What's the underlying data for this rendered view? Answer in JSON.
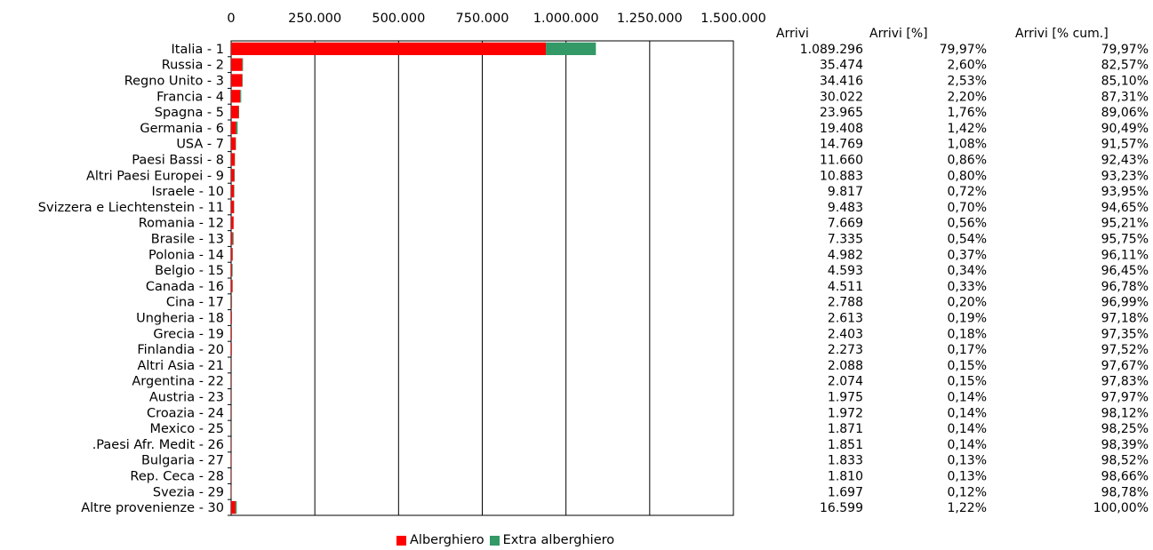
{
  "chart_data": {
    "type": "bar",
    "orientation": "horizontal",
    "stacked": true,
    "xlim": [
      0,
      1500000
    ],
    "x_ticks": [
      "0",
      "250.000",
      "500.000",
      "750.000",
      "1.000.000",
      "1.250.000",
      "1.500.000"
    ],
    "x_tick_values": [
      0,
      250000,
      500000,
      750000,
      1000000,
      1250000,
      1500000
    ],
    "grid": "vertical",
    "legend_position": "bottom",
    "categories": [
      "Italia - 1",
      "Russia - 2",
      "Regno Unito - 3",
      "Francia - 4",
      "Spagna - 5",
      "Germania - 6",
      "USA - 7",
      "Paesi Bassi - 8",
      "Altri Paesi Europei - 9",
      "Israele - 10",
      "Svizzera e Liechtenstein - 11",
      "Romania - 12",
      "Brasile - 13",
      "Polonia - 14",
      "Belgio - 15",
      "Canada - 16",
      "Cina - 17",
      "Ungheria - 18",
      "Grecia - 19",
      "Finlandia - 20",
      "Altri Asia - 21",
      "Argentina - 22",
      "Austria - 23",
      "Croazia - 24",
      "Mexico - 25",
      ".Paesi Afr. Medit - 26",
      "Bulgaria - 27",
      "Rep. Ceca - 28",
      "Svezia - 29",
      "Altre provenienze - 30"
    ],
    "series": [
      {
        "name": "Alberghiero",
        "color": "#ff0000",
        "values": [
          940000,
          33500,
          33000,
          27000,
          22500,
          14500,
          13500,
          11000,
          9500,
          8500,
          8500,
          7300,
          5000,
          4500,
          3000,
          4000,
          1500,
          2400,
          2200,
          2200,
          1200,
          1300,
          1200,
          1200,
          1000,
          1300,
          1500,
          1300,
          1200,
          13000
        ]
      },
      {
        "name": "Extra alberghiero",
        "color": "#339966",
        "values": [
          149296,
          1974,
          1416,
          3022,
          1465,
          4908,
          1269,
          660,
          1383,
          1317,
          983,
          369,
          2335,
          482,
          1593,
          511,
          1288,
          213,
          203,
          73,
          888,
          774,
          775,
          772,
          871,
          551,
          333,
          510,
          497,
          3599
        ]
      }
    ],
    "table": {
      "headers": [
        "Arrivi",
        "Arrivi [%]",
        "Arrivi [% cum.]"
      ],
      "rows": [
        [
          "1.089.296",
          "79,97%",
          "79,97%"
        ],
        [
          "35.474",
          "2,60%",
          "82,57%"
        ],
        [
          "34.416",
          "2,53%",
          "85,10%"
        ],
        [
          "30.022",
          "2,20%",
          "87,31%"
        ],
        [
          "23.965",
          "1,76%",
          "89,06%"
        ],
        [
          "19.408",
          "1,42%",
          "90,49%"
        ],
        [
          "14.769",
          "1,08%",
          "91,57%"
        ],
        [
          "11.660",
          "0,86%",
          "92,43%"
        ],
        [
          "10.883",
          "0,80%",
          "93,23%"
        ],
        [
          "9.817",
          "0,72%",
          "93,95%"
        ],
        [
          "9.483",
          "0,70%",
          "94,65%"
        ],
        [
          "7.669",
          "0,56%",
          "95,21%"
        ],
        [
          "7.335",
          "0,54%",
          "95,75%"
        ],
        [
          "4.982",
          "0,37%",
          "96,11%"
        ],
        [
          "4.593",
          "0,34%",
          "96,45%"
        ],
        [
          "4.511",
          "0,33%",
          "96,78%"
        ],
        [
          "2.788",
          "0,20%",
          "96,99%"
        ],
        [
          "2.613",
          "0,19%",
          "97,18%"
        ],
        [
          "2.403",
          "0,18%",
          "97,35%"
        ],
        [
          "2.273",
          "0,17%",
          "97,52%"
        ],
        [
          "2.088",
          "0,15%",
          "97,67%"
        ],
        [
          "2.074",
          "0,15%",
          "97,83%"
        ],
        [
          "1.975",
          "0,14%",
          "97,97%"
        ],
        [
          "1.972",
          "0,14%",
          "98,12%"
        ],
        [
          "1.871",
          "0,14%",
          "98,25%"
        ],
        [
          "1.851",
          "0,14%",
          "98,39%"
        ],
        [
          "1.833",
          "0,13%",
          "98,52%"
        ],
        [
          "1.810",
          "0,13%",
          "98,66%"
        ],
        [
          "1.697",
          "0,12%",
          "98,78%"
        ],
        [
          "16.599",
          "1,22%",
          "100,00%"
        ]
      ]
    }
  }
}
